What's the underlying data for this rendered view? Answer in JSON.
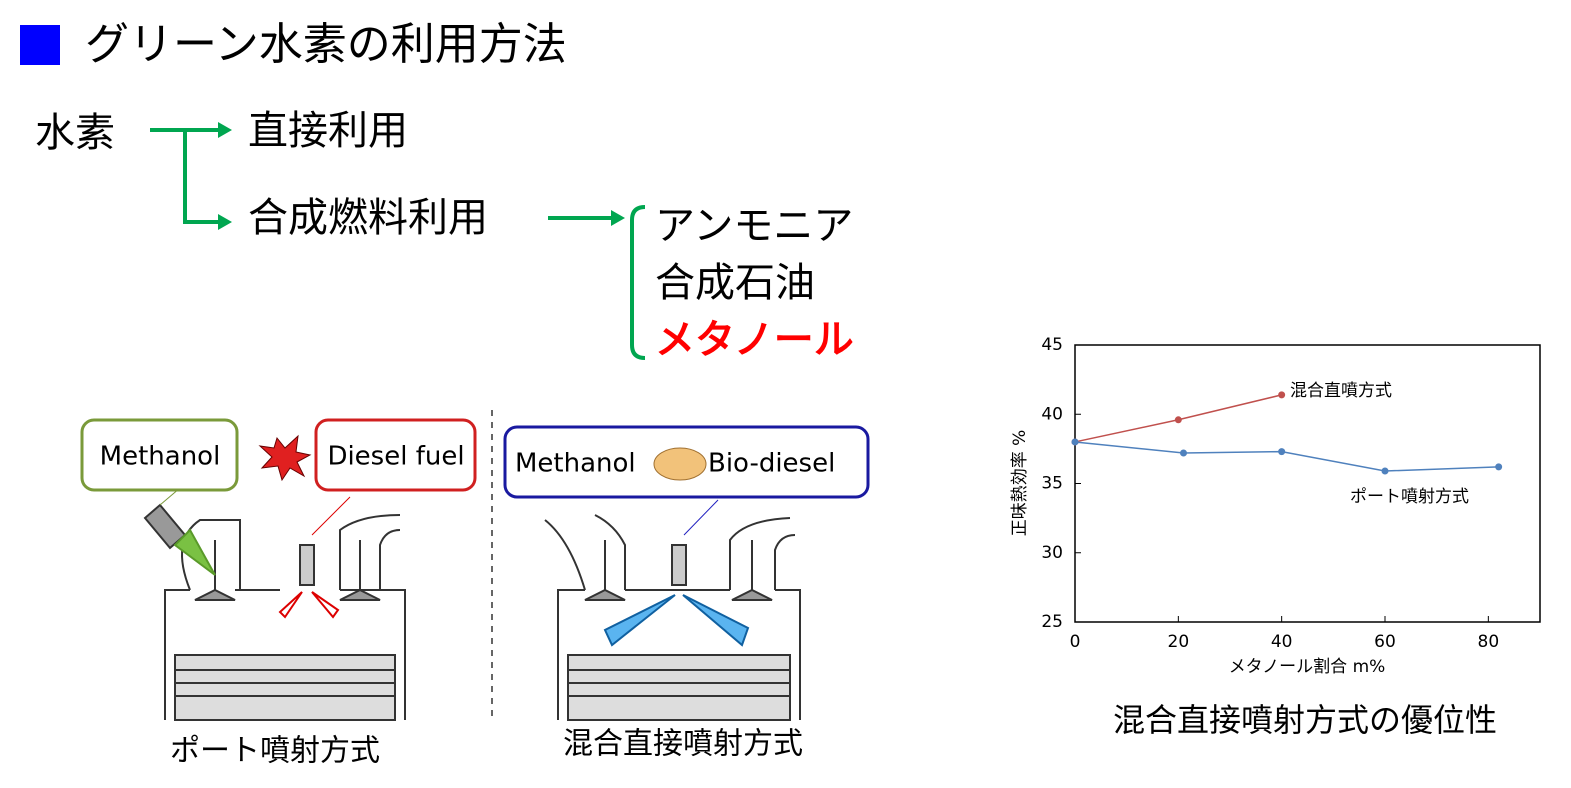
{
  "header": {
    "title": "グリーン水素の利用方法"
  },
  "tree": {
    "root": "水素",
    "children": [
      "直接利用",
      "合成燃料利用"
    ],
    "fuels": [
      "アンモニア",
      "合成石油",
      "メタノール"
    ]
  },
  "engines": [
    {
      "caption": "ポート噴射方式",
      "labels": [
        "Methanol",
        "Diesel fuel"
      ]
    },
    {
      "caption": "混合直接噴射方式",
      "labels": [
        "Methanol",
        "Bio-diesel"
      ]
    }
  ],
  "chart_data": {
    "type": "line",
    "title": "混合直接噴射方式の優位性",
    "x_label": "メタノール割合 m%",
    "y_label": "正味熱効率 %",
    "xlim": [
      0,
      90
    ],
    "xticks": [
      0,
      20,
      40,
      60,
      80
    ],
    "ylim": [
      25,
      45
    ],
    "yticks": [
      25,
      30,
      35,
      40,
      45
    ],
    "series": [
      {
        "name": "混合直噴方式",
        "color": "#c0504d",
        "x": [
          0,
          20,
          40
        ],
        "values": [
          38,
          39.6,
          41.4
        ]
      },
      {
        "name": "ポート噴射方式",
        "color": "#4f81bd",
        "x": [
          0,
          21,
          40,
          60,
          82
        ],
        "values": [
          38,
          37.2,
          37.3,
          35.9,
          36.2
        ]
      }
    ]
  }
}
